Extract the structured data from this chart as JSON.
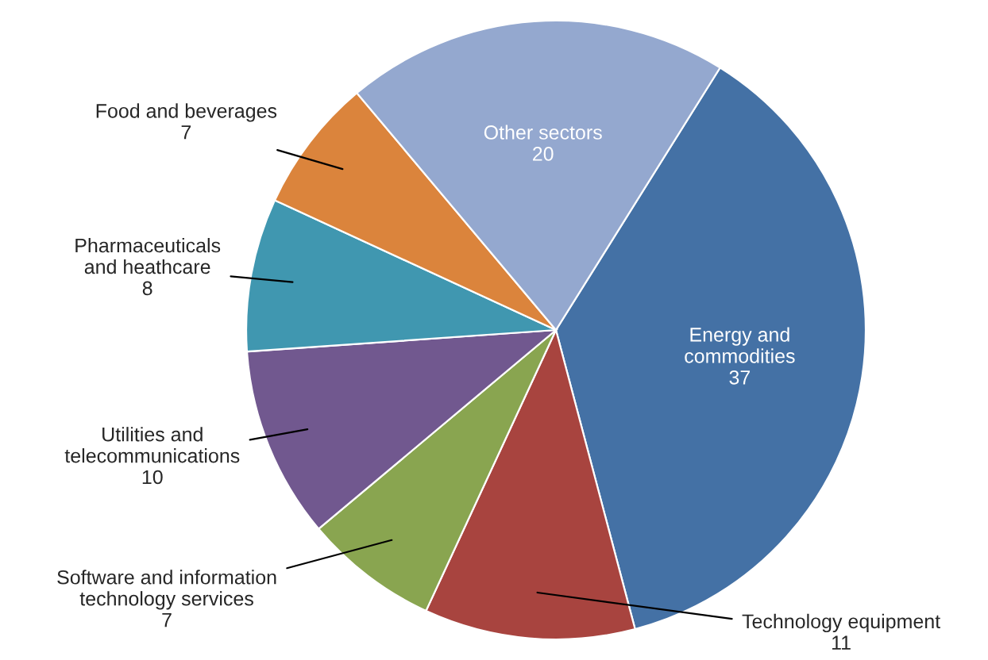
{
  "chart_data": {
    "type": "pie",
    "categories": [
      "Energy and\ncommodities",
      "Technology equipment",
      "Software and information\ntechnology services",
      "Utilities and\ntelecommunications",
      "Pharmaceuticals\nand heathcare",
      "Food and beverages",
      "Other sectors"
    ],
    "values": [
      37,
      11,
      7,
      10,
      8,
      7,
      20
    ],
    "colors": [
      "#4471a5",
      "#a8443f",
      "#89a550",
      "#71588f",
      "#4097b0",
      "#db843c",
      "#94a8cf"
    ],
    "data_labels": true
  }
}
